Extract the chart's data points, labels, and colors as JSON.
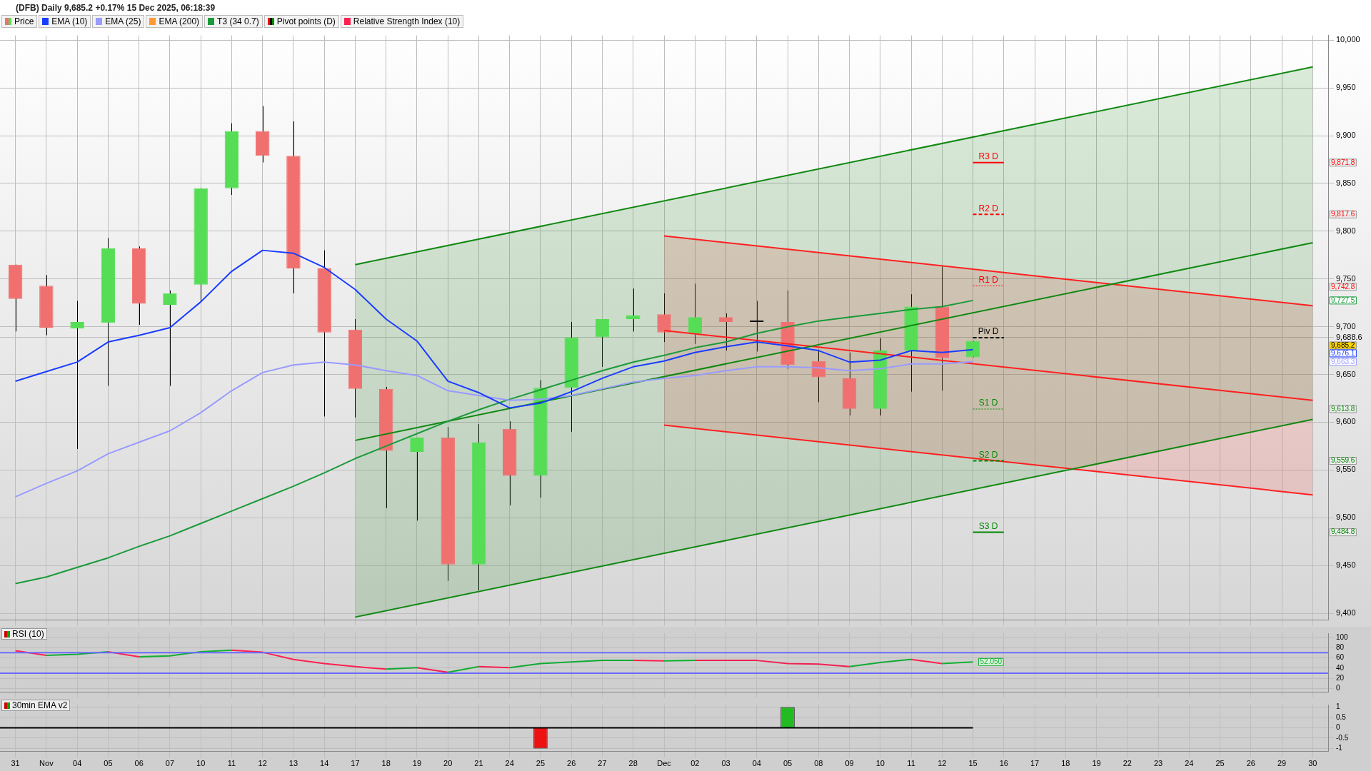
{
  "chart_data": [
    {
      "type": "candlestick",
      "title": "(DFB) Daily 9,685.2 +0.17% 15 Dec 2025, 06:18:39",
      "categories": [
        "31",
        "Nov",
        "04",
        "05",
        "06",
        "07",
        "10",
        "11",
        "12",
        "13",
        "14",
        "17",
        "18",
        "19",
        "20",
        "21",
        "24",
        "25",
        "26",
        "27",
        "28",
        "Dec",
        "02",
        "03",
        "04",
        "05",
        "08",
        "09",
        "10",
        "11",
        "12",
        "15",
        "16",
        "17",
        "18",
        "19",
        "22",
        "23",
        "24",
        "25",
        "26",
        "29",
        "30"
      ],
      "series": [
        {
          "name": "Price",
          "type": "candlestick",
          "colors": [
            "#f07070",
            "#f07070",
            "#55dd55",
            "#55dd55",
            "#f07070",
            "#55dd55",
            "#55dd55",
            "#55dd55",
            "#f07070",
            "#f07070",
            "#f07070",
            "#f07070",
            "#f07070",
            "#55dd55",
            "#f07070",
            "#55dd55",
            "#f07070",
            "#55dd55",
            "#55dd55",
            "#55dd55",
            "#55dd55",
            "#f07070",
            "#55dd55",
            "#f07070",
            "#000000",
            "#f07070",
            "#f07070",
            "#f07070",
            "#55dd55",
            "#55dd55",
            "#f07070",
            "#55dd55",
            null,
            null,
            null,
            null,
            null,
            null,
            null,
            null,
            null,
            null,
            null
          ],
          "ohlc": [
            [
              9765,
              9765,
              9695,
              9729
            ],
            [
              9743,
              9754,
              9691,
              9699
            ],
            [
              9698,
              9727,
              9572,
              9705
            ],
            [
              9704,
              9793,
              9638,
              9782
            ],
            [
              9782,
              9784,
              9702,
              9724
            ],
            [
              9723,
              9738,
              9638,
              9735
            ],
            [
              9744,
              9845,
              9726,
              9845
            ],
            [
              9845,
              9913,
              9838,
              9905
            ],
            [
              9905,
              9931,
              9872,
              9879
            ],
            [
              9879,
              9915,
              9735,
              9761
            ],
            [
              9761,
              9780,
              9606,
              9694
            ],
            [
              9697,
              9708,
              9605,
              9635
            ],
            [
              9635,
              9637,
              9510,
              9570
            ],
            [
              9569,
              9584,
              9497,
              9584
            ],
            [
              9584,
              9595,
              9434,
              9451
            ],
            [
              9451,
              9598,
              9424,
              9579
            ],
            [
              9593,
              9601,
              9513,
              9544
            ],
            [
              9544,
              9644,
              9521,
              9636
            ],
            [
              9636,
              9705,
              9590,
              9689
            ],
            [
              9689,
              9708,
              9658,
              9708
            ],
            [
              9708,
              9740,
              9695,
              9712
            ],
            [
              9713,
              9735,
              9684,
              9694
            ],
            [
              9693,
              9745,
              9682,
              9710
            ],
            [
              9710,
              9714,
              9675,
              9705
            ],
            [
              9705,
              9727,
              9674,
              9705
            ],
            [
              9705,
              9738,
              9656,
              9660
            ],
            [
              9664,
              9676,
              9621,
              9647
            ],
            [
              9646,
              9673,
              9607,
              9614
            ],
            [
              9614,
              9688,
              9607,
              9675
            ],
            [
              9675,
              9734,
              9632,
              9721
            ],
            [
              9721,
              9763,
              9633,
              9667
            ],
            [
              9668,
              9685.2,
              9668,
              9685.2
            ],
            null,
            null,
            null,
            null,
            null,
            null,
            null,
            null,
            null,
            null,
            null
          ],
          "value_labels": [
            null,
            null,
            null,
            null,
            null,
            null,
            null,
            null,
            null,
            null,
            null,
            null,
            null,
            null,
            null,
            null,
            null,
            null,
            null,
            null,
            null,
            null,
            null,
            null,
            null,
            null,
            null,
            null,
            null,
            null,
            null,
            "9,685.2",
            null,
            null,
            null,
            null,
            null,
            null,
            null,
            null,
            null,
            null,
            null
          ]
        },
        {
          "name": "EMA (10)",
          "type": "line",
          "color": "#1a3cff",
          "values": [
            9643,
            9653,
            9663,
            9684,
            9691,
            9699,
            9726,
            9758,
            9780,
            9777,
            9762,
            9739,
            9708,
            9685,
            9643,
            9631,
            9615,
            9620,
            9632,
            9646,
            9658,
            9664,
            9673,
            9679,
            9684,
            9680,
            9675,
            9663,
            9665,
            9675,
            9673,
            9676.1,
            null,
            null,
            null,
            null,
            null,
            null,
            null,
            null,
            null,
            null,
            null
          ]
        },
        {
          "name": "EMA (25)",
          "type": "line",
          "color": "#9a9aff",
          "values": [
            9522,
            9536,
            9549,
            9567,
            9579,
            9591,
            9610,
            9633,
            9652,
            9660,
            9663,
            9660,
            9654,
            9649,
            9633,
            9628,
            9623,
            9624,
            9628,
            9635,
            9642,
            9646,
            9649,
            9654,
            9658,
            9658,
            9657,
            9654,
            9656,
            9661,
            9661,
            9663.3,
            null,
            null,
            null,
            null,
            null,
            null,
            null,
            null,
            null,
            null,
            null
          ]
        },
        {
          "name": "EMA (200)",
          "type": "line",
          "color": "#ff9933",
          "values": [
            null,
            null,
            null,
            null,
            null,
            null,
            null,
            null,
            null,
            null,
            null,
            null,
            null,
            null,
            null,
            null,
            null,
            null,
            null,
            null,
            null,
            null,
            null,
            null,
            null,
            null,
            null,
            null,
            null,
            null,
            null,
            null,
            null,
            null,
            null,
            null,
            null,
            null,
            null,
            null,
            null,
            null,
            null
          ]
        },
        {
          "name": "T3 (34 0.7)",
          "type": "line",
          "color": "#1a9a3a",
          "values": [
            9431,
            9438,
            9448,
            9458,
            9470,
            9481,
            9494,
            9507,
            9520,
            9533,
            9547,
            9562,
            9575,
            9588,
            9601,
            9613,
            9624,
            9634,
            9644,
            9654,
            9663,
            9670,
            9678,
            9684,
            9693,
            9700,
            9706,
            9710,
            9714,
            9718,
            9721,
            9727.5,
            null,
            null,
            null,
            null,
            null,
            null,
            null,
            null,
            null,
            null,
            null
          ]
        },
        {
          "type": "line",
          "color": "#118811",
          "x": [
            "17",
            "30"
          ],
          "values": [
            9765,
            9972
          ]
        },
        {
          "type": "line",
          "color": "#118811",
          "x": [
            "17",
            "30"
          ],
          "values": [
            9581,
            9788
          ],
          "lower": [
            9396,
            9603
          ],
          "upper": [
            9765,
            9972
          ]
        },
        {
          "type": "line",
          "color": "#118811",
          "x": [
            "17",
            "30"
          ],
          "values": [
            9396,
            9603
          ]
        },
        {
          "type": "line",
          "color": "#ff2020",
          "x": [
            "Dec",
            "30"
          ],
          "values": [
            9795,
            9722
          ]
        },
        {
          "type": "line",
          "color": "#ff2020",
          "x": [
            "Dec",
            "30"
          ],
          "values": [
            9696,
            9623
          ],
          "lower": [
            9597,
            9524
          ],
          "upper": [
            9795,
            9722
          ]
        },
        {
          "type": "line",
          "color": "#ff2020",
          "x": [
            "Dec",
            "30"
          ],
          "values": [
            9597,
            9524
          ]
        }
      ],
      "ylim": [
        9393,
        10005
      ],
      "yticks": [
        {
          "value": 9400,
          "label": "9,400"
        },
        {
          "value": 9450,
          "label": "9,450"
        },
        {
          "value": 9500,
          "label": "9,500"
        },
        {
          "value": 9550,
          "label": "9,550"
        },
        {
          "value": 9600,
          "label": "9,600"
        },
        {
          "value": 9650,
          "label": "9,650"
        },
        {
          "value": 9688.6,
          "label": "9,688.6"
        },
        {
          "value": 9700,
          "label": "9,700"
        },
        {
          "value": 9750,
          "label": "9,750"
        },
        {
          "value": 9800,
          "label": "9,800"
        },
        {
          "value": 9850,
          "label": "9,850"
        },
        {
          "value": 9900,
          "label": "9,900"
        },
        {
          "value": 9950,
          "label": "9,950"
        },
        {
          "value": 10000,
          "label": "10,000"
        }
      ],
      "ref_lines": [
        {
          "axis": "y",
          "value": 9871.8,
          "label": "R3 D",
          "color": "#ff0000",
          "line_style": "solid"
        },
        {
          "axis": "y",
          "value": 9817.6,
          "label": "R2 D",
          "color": "#ff0000",
          "line_style": "dashed"
        },
        {
          "axis": "y",
          "value": 9742.8,
          "label": "R1 D",
          "color": "#ff0000",
          "line_style": "dotted"
        },
        {
          "axis": "y",
          "value": 9688.6,
          "label": "Piv D",
          "color": "#000000",
          "line_style": "dashed"
        },
        {
          "axis": "y",
          "value": 9613.8,
          "label": "S1 D",
          "color": "#008800",
          "line_style": "dotted"
        },
        {
          "axis": "y",
          "value": 9559.6,
          "label": "S2 D",
          "color": "#008800",
          "line_style": "dashed"
        },
        {
          "axis": "y",
          "value": 9484.8,
          "label": "S3 D",
          "color": "#008800",
          "line_style": "solid"
        }
      ],
      "annotations": [
        "Pivot points (D)",
        "9,871.8",
        "9,817.6",
        "9,742.8",
        "9,613.8",
        "9,559.6",
        "9,484.8",
        "9,676.1",
        "9,663.3",
        "9,727.5"
      ],
      "grid": true,
      "legend": "top left",
      "tick_labels": "y"
    },
    {
      "type": "line",
      "title": "RSI (10)",
      "categories": [
        "31",
        "Nov",
        "04",
        "05",
        "06",
        "07",
        "10",
        "11",
        "12",
        "13",
        "14",
        "17",
        "18",
        "19",
        "20",
        "21",
        "24",
        "25",
        "26",
        "27",
        "28",
        "Dec",
        "02",
        "03",
        "04",
        "05",
        "08",
        "09",
        "10",
        "11",
        "12",
        "15",
        "16",
        "17",
        "18",
        "19",
        "22",
        "23",
        "24",
        "25",
        "26",
        "29",
        "30"
      ],
      "series": [
        {
          "name": "Relative Strength Index (10)",
          "color": "#ff2050",
          "values": [
            74,
            65,
            null,
            72,
            62,
            null,
            null,
            75,
            71,
            57,
            49,
            43,
            38,
            null,
            null,
            43,
            41,
            null,
            null,
            null,
            55,
            54,
            null,
            null,
            null,
            null,
            null,
            null,
            null,
            57,
            49,
            null,
            null,
            null,
            null,
            null,
            null,
            null,
            null,
            null,
            null,
            null,
            null
          ]
        },
        {
          "color": "#f02050",
          "values": [
            null,
            null,
            null,
            null,
            null,
            null,
            null,
            null,
            null,
            null,
            null,
            null,
            null,
            41,
            32,
            null,
            null,
            null,
            null,
            null,
            null,
            null,
            55,
            55,
            55,
            49,
            48,
            43,
            null,
            null,
            null,
            null,
            null,
            null,
            null,
            null,
            null,
            null,
            null,
            null,
            null,
            null,
            null
          ]
        },
        {
          "color": "#11aa33",
          "values": [
            null,
            65,
            67,
            72,
            null,
            null,
            null,
            null,
            null,
            null,
            null,
            null,
            38,
            41,
            null,
            null,
            41,
            49,
            52,
            55,
            55,
            null,
            null,
            null,
            null,
            null,
            null,
            43,
            51,
            57,
            null,
            null,
            null,
            null,
            null,
            null,
            null,
            null,
            null,
            null,
            null,
            null,
            null
          ]
        },
        {
          "color": "#10b030",
          "values": [
            null,
            null,
            null,
            null,
            62,
            64,
            72,
            75,
            null,
            null,
            null,
            null,
            null,
            null,
            32,
            43,
            null,
            null,
            null,
            null,
            null,
            54,
            55,
            null,
            null,
            null,
            null,
            null,
            null,
            null,
            49,
            52.05,
            null,
            null,
            null,
            null,
            null,
            null,
            null,
            null,
            null,
            null,
            null
          ],
          "value_labels": [
            null,
            null,
            null,
            null,
            null,
            null,
            null,
            null,
            null,
            null,
            null,
            null,
            null,
            null,
            null,
            null,
            null,
            null,
            null,
            null,
            null,
            null,
            null,
            null,
            null,
            null,
            null,
            null,
            null,
            null,
            null,
            "52.050",
            null,
            null,
            null,
            null,
            null,
            null,
            null,
            null,
            null,
            null,
            null
          ]
        }
      ],
      "ylim": [
        -6,
        108
      ],
      "yticks": [
        0,
        20,
        40,
        60,
        80,
        100
      ],
      "ref_lines": [
        {
          "axis": "y",
          "value": 70,
          "color": "#6a6aff"
        },
        {
          "axis": "y",
          "value": 30,
          "color": "#6a6aff"
        }
      ],
      "grid": true,
      "legend": "top left",
      "tick_labels": "y"
    },
    {
      "type": "bar",
      "title": "30min EMA v2",
      "categories": [
        "31",
        "Nov",
        "04",
        "05",
        "06",
        "07",
        "10",
        "11",
        "12",
        "13",
        "14",
        "17",
        "18",
        "19",
        "20",
        "21",
        "24",
        "25",
        "26",
        "27",
        "28",
        "Dec",
        "02",
        "03",
        "04",
        "05",
        "08",
        "09",
        "10",
        "11",
        "12",
        "15",
        "16",
        "17",
        "18",
        "19",
        "22",
        "23",
        "24",
        "25",
        "26",
        "29",
        "30"
      ],
      "values": [
        0,
        0,
        0,
        0,
        0,
        0,
        0,
        0,
        0,
        0,
        0,
        0,
        0,
        0,
        0,
        0,
        0,
        -1,
        0,
        0,
        0,
        0,
        0,
        0,
        0,
        1,
        0,
        0,
        0,
        0,
        0,
        0,
        null,
        null,
        null,
        null,
        null,
        null,
        null,
        null,
        null,
        null,
        null
      ],
      "colors": [
        "#22bb22",
        "#22bb22",
        "#22bb22",
        "#22bb22",
        "#22bb22",
        "#22bb22",
        "#22bb22",
        "#22bb22",
        "#22bb22",
        "#22bb22",
        "#22bb22",
        "#22bb22",
        "#22bb22",
        "#22bb22",
        "#22bb22",
        "#22bb22",
        "#22bb22",
        "#ee1111",
        "#22bb22",
        "#22bb22",
        "#22bb22",
        "#22bb22",
        "#22bb22",
        "#22bb22",
        "#22bb22",
        "#22bb22",
        "#22bb22",
        "#22bb22",
        "#22bb22",
        "#22bb22",
        "#22bb22",
        "#22bb22",
        null,
        null,
        null,
        null,
        null,
        null,
        null,
        null,
        null,
        null,
        null
      ],
      "ylim": [
        -1.15,
        1.12
      ],
      "yticks": [
        -1,
        -0.5,
        0,
        0.5,
        1
      ],
      "ref_lines": [
        {
          "axis": "y",
          "value": 0,
          "color": "#000000"
        }
      ],
      "grid": true
    }
  ]
}
